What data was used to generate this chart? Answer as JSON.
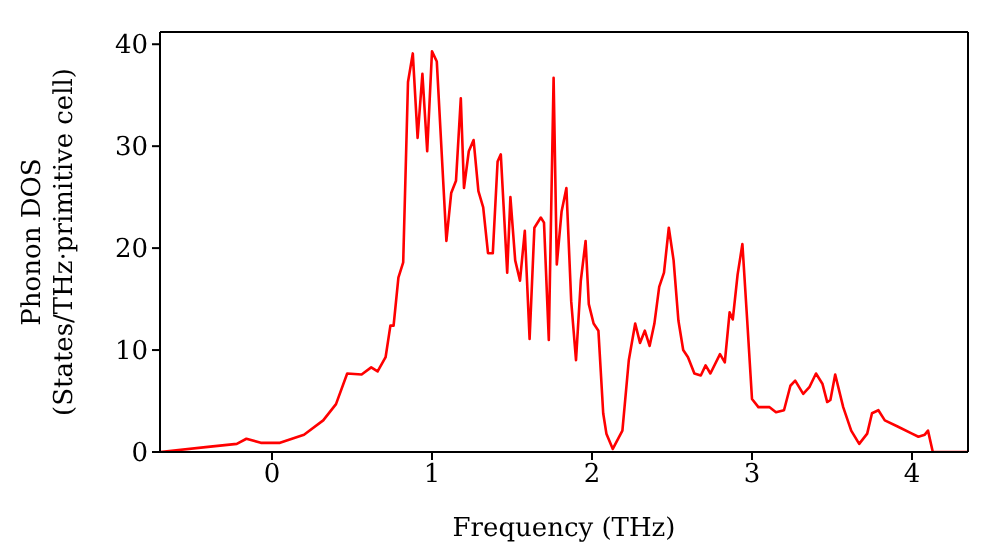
{
  "chart_data": {
    "type": "line",
    "xlabel": "Frequency (THz)",
    "ylabel": "Phonon DOS\n(States/THz·primitive cell)",
    "x": [
      -0.7,
      -0.4,
      -0.22,
      -0.16,
      -0.07,
      0.05,
      0.2,
      0.32,
      0.4,
      0.47,
      0.56,
      0.62,
      0.66,
      0.71,
      0.74,
      0.76,
      0.79,
      0.82,
      0.85,
      0.88,
      0.91,
      0.94,
      0.97,
      1.0,
      1.03,
      1.09,
      1.12,
      1.15,
      1.18,
      1.2,
      1.23,
      1.26,
      1.29,
      1.32,
      1.35,
      1.38,
      1.41,
      1.43,
      1.47,
      1.49,
      1.52,
      1.55,
      1.58,
      1.61,
      1.64,
      1.68,
      1.7,
      1.73,
      1.76,
      1.78,
      1.81,
      1.84,
      1.87,
      1.9,
      1.93,
      1.96,
      1.98,
      2.01,
      2.04,
      2.07,
      2.09,
      2.13,
      2.19,
      2.23,
      2.27,
      2.3,
      2.33,
      2.36,
      2.39,
      2.42,
      2.45,
      2.48,
      2.51,
      2.54,
      2.57,
      2.6,
      2.64,
      2.68,
      2.71,
      2.74,
      2.8,
      2.83,
      2.86,
      2.88,
      2.91,
      2.94,
      2.97,
      3.0,
      3.04,
      3.11,
      3.15,
      3.2,
      3.24,
      3.27,
      3.32,
      3.36,
      3.4,
      3.44,
      3.47,
      3.49,
      3.52,
      3.57,
      3.62,
      3.67,
      3.72,
      3.75,
      3.79,
      3.83,
      3.91,
      4.0,
      4.04,
      4.08,
      4.1,
      4.13,
      4.35
    ],
    "series": [
      {
        "color": "#ff0000",
        "values": [
          0,
          0.5,
          0.8,
          1.3,
          0.9,
          0.9,
          1.7,
          3.1,
          4.7,
          7.7,
          7.6,
          8.3,
          7.9,
          9.3,
          12.4,
          12.4,
          17.1,
          18.6,
          36.3,
          39.1,
          30.8,
          37.1,
          29.5,
          39.3,
          38.3,
          20.7,
          25.4,
          26.6,
          34.7,
          25.9,
          29.5,
          30.6,
          25.6,
          24,
          19.5,
          19.5,
          28.5,
          29.2,
          17.6,
          25,
          18.8,
          16.8,
          21.7,
          11.1,
          22,
          23,
          22.5,
          11,
          36.7,
          18.4,
          23.6,
          25.9,
          14.8,
          9,
          16.8,
          20.7,
          14.5,
          12.6,
          11.9,
          3.8,
          1.8,
          0.3,
          2.1,
          9,
          12.6,
          10.7,
          11.9,
          10.4,
          12.6,
          16.2,
          17.6,
          22,
          18.8,
          12.9,
          10,
          9.3,
          7.7,
          7.5,
          8.5,
          7.7,
          9.6,
          8.8,
          13.7,
          13,
          17.4,
          20.4,
          12.9,
          5.2,
          4.4,
          4.4,
          3.9,
          4.1,
          6.5,
          7,
          5.7,
          6.4,
          7.7,
          6.7,
          4.9,
          5.1,
          7.6,
          4.4,
          2.1,
          0.8,
          1.8,
          3.8,
          4.1,
          3.1,
          2.5,
          1.8,
          1.5,
          1.7,
          2.1,
          0,
          0
        ]
      }
    ],
    "xlim": [
      -0.7,
      4.35
    ],
    "xticks": [
      0,
      1,
      2,
      3,
      4
    ],
    "ylim": [
      0,
      41.2
    ],
    "yticks": [
      0,
      10,
      20,
      30,
      40
    ],
    "grid": false,
    "legend": false,
    "marker": "none",
    "line_style": "solid"
  }
}
